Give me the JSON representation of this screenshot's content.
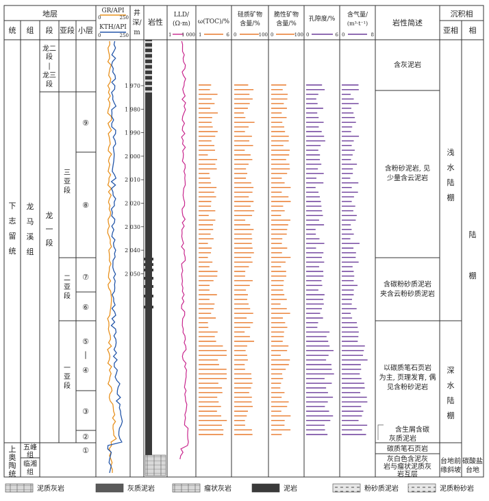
{
  "headers": {
    "stratum": "地层",
    "system": "统",
    "group": "组",
    "section": "段",
    "subsection": "亚段",
    "layer": "小层",
    "gr_title": "GR/API",
    "gr_range": [
      "0",
      "250"
    ],
    "kth_title": "KTH/API",
    "kth_range": [
      "0",
      "250"
    ],
    "depth_title": [
      "井",
      "深/",
      "m"
    ],
    "lith_title": "岩性",
    "lld_title": [
      "LLD/",
      "(Ω·m)"
    ],
    "lld_range": [
      "1",
      "1 000"
    ],
    "toc_title": "ω(TOC)/%",
    "toc_range": [
      "1",
      "6"
    ],
    "silica_title": [
      "硅质矿物",
      "含量/%"
    ],
    "silica_range": [
      "0",
      "100"
    ],
    "brittle_title": [
      "脆性矿物",
      "含量/%"
    ],
    "brittle_range": [
      "0",
      "100"
    ],
    "porosity_title": "孔隙度/%",
    "porosity_range": [
      "0",
      "6"
    ],
    "gas_title": [
      "含气量/",
      "(m³·t⁻¹)"
    ],
    "gas_range": [
      "0",
      "8"
    ],
    "desc_title": "岩性简述",
    "facies_title": "沉积相",
    "subfacies": "亚相",
    "facies": "相"
  },
  "system": [
    {
      "name": [
        "下",
        "志",
        "留",
        "统"
      ]
    },
    {
      "name": [
        "上",
        "奥",
        "陶",
        "统"
      ]
    }
  ],
  "groups": [
    {
      "name": [
        "龙",
        "马",
        "溪",
        "组"
      ]
    },
    {
      "name": [
        "五峰",
        "组"
      ]
    },
    {
      "name": [
        "临湘",
        "组"
      ]
    }
  ],
  "sections": [
    {
      "name": [
        "龙二",
        "段",
        "|",
        "龙三",
        "段"
      ]
    },
    {
      "name": [
        "龙",
        "一",
        "段"
      ]
    }
  ],
  "subsections": [
    {
      "name": [
        "三",
        "亚",
        "段"
      ]
    },
    {
      "name": [
        "二",
        "亚",
        "段"
      ]
    },
    {
      "name": [
        "一",
        "亚",
        "段"
      ]
    }
  ],
  "layers": [
    "⑨",
    "⑧",
    "⑦",
    "⑥",
    "⑤\n|\n④",
    "③",
    "②",
    "①"
  ],
  "depth_ticks": [
    "1 970",
    "1 980",
    "1 990",
    "2 000",
    "2 010",
    "2 020",
    "2 030",
    "2 040",
    "2 050"
  ],
  "descriptions": [
    "含灰泥岩",
    "含粉砂泥岩，见少量含云泥岩",
    "含碳粉砂质泥岩夹含云粉砂质泥岩",
    "以碳质笔石页岩为主，页理发育，偶见含粉砂泥岩",
    "含生屑含碳灰质泥岩",
    "碳质笔石页岩",
    "灰白色含泥灰岩与瘤状泥质灰岩互层"
  ],
  "subfacies": [
    "浅水陆棚",
    "深水陆棚",
    "台地前缘斜坡"
  ],
  "facies": [
    "陆棚",
    "碳酸盐台地"
  ],
  "legend": [
    {
      "label": "泥质灰岩",
      "icon": "marly-limestone-pattern"
    },
    {
      "label": "灰质泥岩",
      "icon": "calcareous-mudstone-pattern"
    },
    {
      "label": "瘤状灰岩",
      "icon": "nodular-limestone-pattern"
    },
    {
      "label": "泥岩",
      "icon": "mudstone-pattern"
    },
    {
      "label": "粉砂质泥岩",
      "icon": "silty-mudstone-pattern"
    },
    {
      "label": "泥质粉砂岩",
      "icon": "argillaceous-siltstone-pattern"
    }
  ],
  "colors": {
    "gr": "#e8901c",
    "kth": "#2255a8",
    "lld": "#c8248c",
    "toc": "#e8782a",
    "porosity": "#6a3a98",
    "gas": "#6a3a98",
    "lith_dark": "#3a3a3a",
    "lith_light": "#cfcfcf"
  }
}
